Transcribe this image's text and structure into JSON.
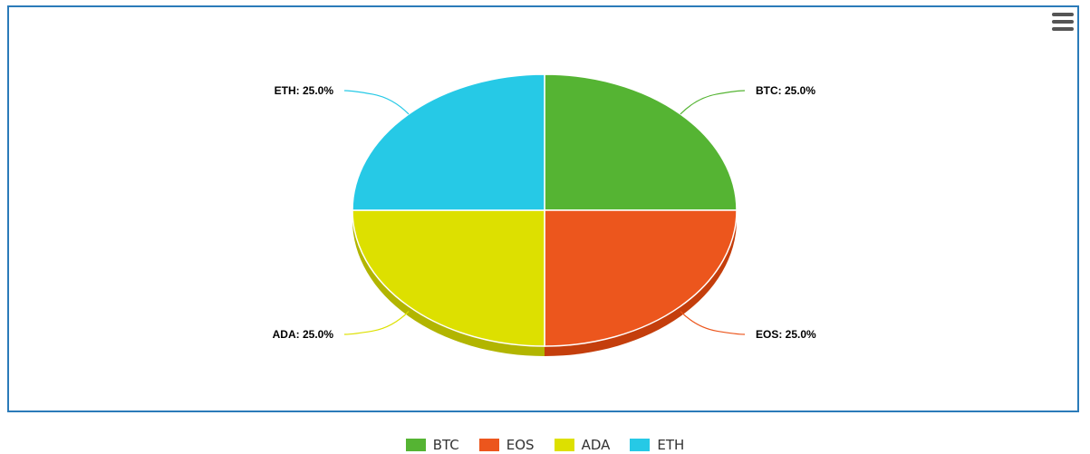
{
  "chart_data": {
    "type": "pie",
    "title": "",
    "slices": [
      {
        "name": "BTC",
        "value": 25.0,
        "label": "BTC: 25.0%",
        "color": "#55b433",
        "side": "#3f8f23"
      },
      {
        "name": "EOS",
        "value": 25.0,
        "label": "EOS: 25.0%",
        "color": "#ec561d",
        "side": "#c43e0c"
      },
      {
        "name": "ADA",
        "value": 25.0,
        "label": "ADA: 25.0%",
        "color": "#dde000",
        "side": "#b2b500"
      },
      {
        "name": "ETH",
        "value": 25.0,
        "label": "ETH: 25.0%",
        "color": "#26c9e6",
        "side": "#1aa6bf"
      }
    ],
    "legend": {
      "position": "bottom-center"
    },
    "style": "3d"
  },
  "toolbar": {
    "menu_icon": "hamburger-menu-icon"
  }
}
